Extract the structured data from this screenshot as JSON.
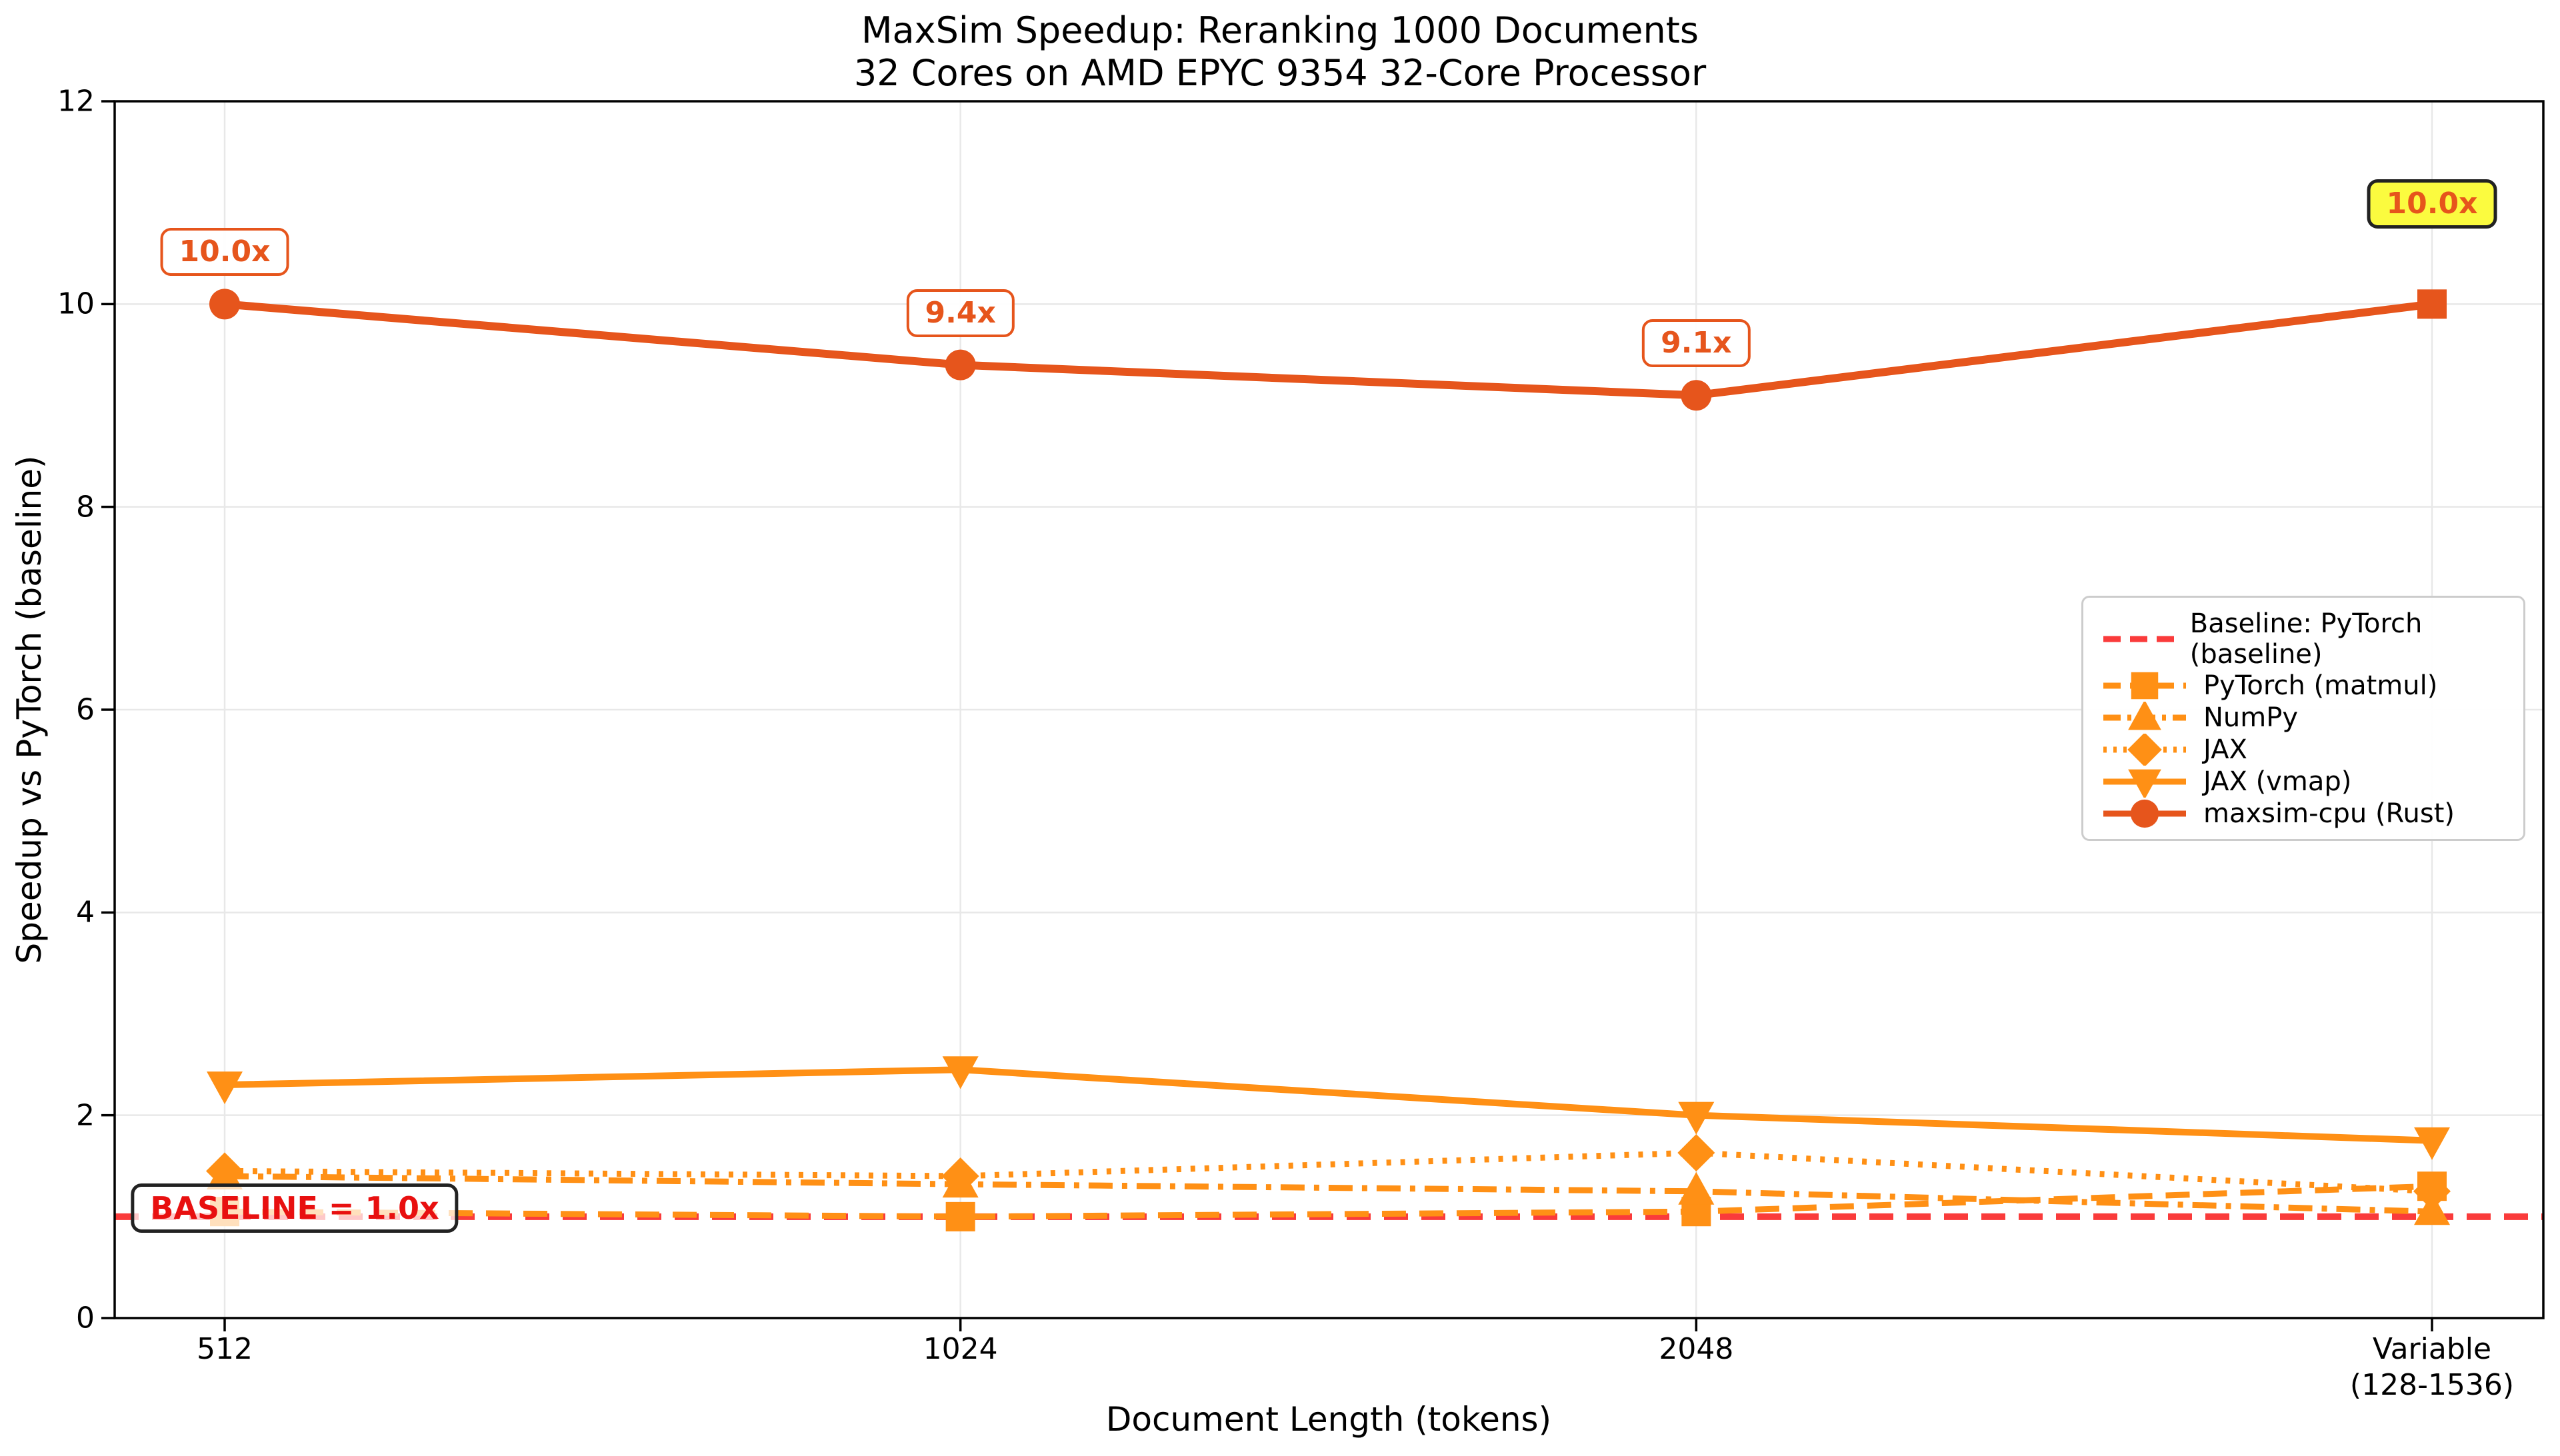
{
  "chart_data": {
    "type": "line",
    "title": "MaxSim Speedup: Reranking 1000 Documents",
    "subtitle": "32 Cores on AMD EPYC 9354 32-Core Processor",
    "xlabel": "Document Length (tokens)",
    "ylabel": "Speedup vs PyTorch (baseline)",
    "categories": [
      "512",
      "1024",
      "2048",
      "Variable\n(128-1536)"
    ],
    "ylim": [
      0,
      12
    ],
    "yticks": [
      0,
      2,
      4,
      6,
      8,
      10,
      12
    ],
    "grid": true,
    "legend_position": "center-right",
    "series": [
      {
        "name": "Baseline: PyTorch (baseline)",
        "marker": "none",
        "linestyle": "dashed",
        "color": "#FA3B3B",
        "values": [
          1.0,
          1.0,
          1.0,
          1.0
        ]
      },
      {
        "name": "PyTorch (matmul)",
        "marker": "square",
        "linestyle": "dashed",
        "color": "#FF9015",
        "values": [
          1.05,
          1.0,
          1.05,
          1.3
        ]
      },
      {
        "name": "NumPy",
        "marker": "triangle-up",
        "linestyle": "dashdot",
        "color": "#FF9015",
        "values": [
          1.4,
          1.32,
          1.25,
          1.05
        ]
      },
      {
        "name": "JAX",
        "marker": "diamond",
        "linestyle": "dotted",
        "color": "#FF9015",
        "values": [
          1.45,
          1.4,
          1.63,
          1.25
        ]
      },
      {
        "name": "JAX (vmap)",
        "marker": "triangle-down",
        "linestyle": "solid",
        "color": "#FF9015",
        "values": [
          2.3,
          2.45,
          2.0,
          1.75
        ]
      },
      {
        "name": "maxsim-cpu (Rust)",
        "marker": "circle",
        "last_marker": "square",
        "linestyle": "solid",
        "color": "#E6551C",
        "values": [
          10.0,
          9.4,
          9.1,
          10.0
        ]
      }
    ],
    "annotations": [
      {
        "text": "10.0x",
        "x_index": 0,
        "y": 10.0,
        "style": "outline"
      },
      {
        "text": "9.4x",
        "x_index": 1,
        "y": 9.4,
        "style": "outline"
      },
      {
        "text": "9.1x",
        "x_index": 2,
        "y": 9.1,
        "style": "outline"
      },
      {
        "text": "10.0x",
        "x_index": 3,
        "y": 10.0,
        "style": "highlight"
      },
      {
        "text": "BASELINE = 1.0x",
        "style": "baseline-label"
      }
    ]
  },
  "colors": {
    "orange": "#FF9015",
    "rust": "#E6551C",
    "baseline_red": "#FA3B3B",
    "baseline_text": "#E81010",
    "grid": "#E8E8E8",
    "axis": "#000000",
    "highlight_bg": "#FBFB3F",
    "highlight_border": "#222222",
    "annotation_border": "#E6551C",
    "legend_border": "#CCCCCC"
  }
}
